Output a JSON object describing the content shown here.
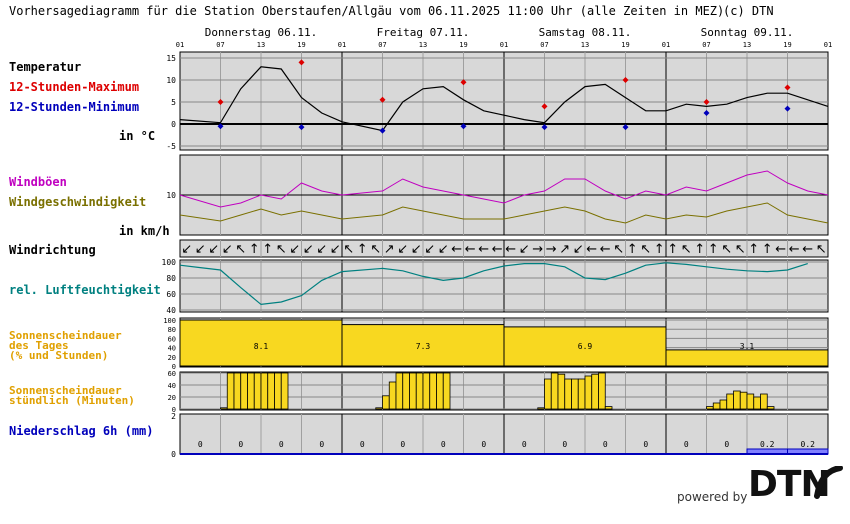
{
  "header": {
    "title": "Vorhersagediagramm für die Station Oberstaufen/Allgäu vom 06.11.2025 11:00 Uhr (alle Zeiten in MEZ)",
    "copyright": "(c) DTN"
  },
  "days": [
    "Donnerstag 06.11.",
    "Freitag 07.11.",
    "Samstag 08.11.",
    "Sonntag 09.11."
  ],
  "hour_ticks": [
    "01",
    "07",
    "13",
    "19",
    "01",
    "07",
    "13",
    "19",
    "01",
    "07",
    "13",
    "19",
    "01",
    "07",
    "13",
    "19",
    "01"
  ],
  "labels": {
    "temperature": "Temperatur",
    "max": "12-Stunden-Maximum",
    "min": "12-Stunden-Minimum",
    "temp_unit": "in °C",
    "gusts": "Windböen",
    "wind_speed": "Windgeschwindigkeit",
    "wind_unit": "in km/h",
    "wind_dir": "Windrichtung",
    "humidity": "rel. Luftfeuchtigkeit",
    "sun_daily_1": "Sonnenscheindauer",
    "sun_daily_2": "des Tages",
    "sun_daily_3": "(% und Stunden)",
    "sun_hourly_1": "Sonnenscheindauer",
    "sun_hourly_2": "stündlich (Minuten)",
    "precip": "Niederschlag 6h (mm)"
  },
  "footer": {
    "powered_by": "powered by",
    "brand": "DTN"
  },
  "colors": {
    "panel_bg": "#d8d8d8",
    "temp_max": "#dd0000",
    "temp_min": "#0000bb",
    "gust": "#c000c0",
    "wind": "#7a7000",
    "humidity": "#008080",
    "sun": "#f8d820",
    "sun_label": "#e0a000",
    "precip": "#0000bb",
    "precip_bar": "#8080ff"
  },
  "chart_data": [
    {
      "type": "line",
      "name": "temperature",
      "x_hours": [
        0,
        6,
        9,
        12,
        15,
        18,
        21,
        24,
        30,
        33,
        36,
        39,
        42,
        45,
        48,
        51,
        54,
        57,
        60,
        63,
        66,
        69,
        72,
        75,
        78,
        81,
        84,
        87,
        90,
        93,
        96
      ],
      "y": [
        1,
        0.3,
        8,
        13,
        12.5,
        6,
        2.5,
        0.5,
        -1.5,
        5,
        8,
        8.5,
        5.5,
        3,
        2,
        1,
        0.3,
        5,
        8.5,
        9,
        6,
        3,
        3,
        4.5,
        4,
        4.5,
        6,
        7,
        7,
        5.5,
        4
      ],
      "ylim": [
        -5,
        15
      ],
      "yticks": [
        -5,
        0,
        5,
        10,
        15
      ],
      "max_points": {
        "x_hours": [
          6,
          18,
          30,
          42,
          54,
          66,
          78,
          90
        ],
        "y": [
          5,
          14,
          5.5,
          9.5,
          4,
          10,
          5,
          8.3
        ]
      },
      "min_points": {
        "x_hours": [
          6,
          18,
          30,
          42,
          54,
          66,
          78,
          90
        ],
        "y": [
          -0.5,
          -0.7,
          -1.5,
          -0.5,
          -0.7,
          -0.7,
          2.5,
          3.5
        ]
      }
    },
    {
      "type": "line",
      "name": "wind",
      "ylim": [
        0,
        20
      ],
      "yticks": [
        10
      ],
      "x_hours": [
        0,
        6,
        9,
        12,
        15,
        18,
        21,
        24,
        30,
        33,
        36,
        39,
        42,
        45,
        48,
        51,
        54,
        57,
        60,
        63,
        66,
        69,
        72,
        75,
        78,
        81,
        84,
        87,
        90,
        93,
        96
      ],
      "gusts": [
        10,
        7,
        8,
        10,
        9,
        13,
        11,
        10,
        11,
        14,
        12,
        11,
        10,
        9,
        8,
        10,
        11,
        14,
        14,
        11,
        9,
        11,
        10,
        12,
        11,
        13,
        15,
        16,
        13,
        11,
        10
      ],
      "speed": [
        5,
        3.5,
        5,
        6.5,
        5,
        6,
        5,
        4,
        5,
        7,
        6,
        5,
        4,
        4,
        4,
        5,
        6,
        7,
        6,
        4,
        3,
        5,
        4,
        5,
        4.5,
        6,
        7,
        8,
        5,
        4,
        3
      ]
    },
    {
      "type": "wind_direction",
      "arrows": [
        "↙",
        "↙",
        "↙",
        "↙",
        "↖",
        "↑",
        "↑",
        "↖",
        "↙",
        "↙",
        "↙",
        "↙",
        "↖",
        "↑",
        "↖",
        "↗",
        "↙",
        "↙",
        "↙",
        "↙",
        "←",
        "←",
        "←",
        "←",
        "←",
        "↙",
        "→",
        "→",
        "↗",
        "↙",
        "←",
        "←",
        "↖",
        "↑",
        "↖",
        "↑",
        "↑",
        "↖",
        "↑",
        "↑",
        "↖",
        "↖",
        "↑",
        "↑",
        "←",
        "←",
        "←",
        "↖"
      ]
    },
    {
      "type": "line",
      "name": "humidity",
      "ylim": [
        40,
        100
      ],
      "yticks": [
        40,
        60,
        80,
        100
      ],
      "x_hours": [
        0,
        3,
        6,
        9,
        12,
        15,
        18,
        21,
        24,
        30,
        33,
        36,
        39,
        42,
        45,
        48,
        51,
        54,
        57,
        60,
        63,
        66,
        69,
        72,
        75,
        78,
        81,
        84,
        87,
        90,
        93
      ],
      "y": [
        96,
        93,
        90,
        68,
        47,
        50,
        58,
        77,
        88,
        92,
        89,
        82,
        77,
        80,
        89,
        95,
        98,
        98,
        94,
        80,
        78,
        86,
        96,
        99,
        97,
        94,
        91,
        89,
        88,
        90,
        98
      ]
    },
    {
      "type": "bar",
      "name": "sunshine_daily",
      "categories": [
        "06.11.",
        "07.11.",
        "08.11.",
        "09.11."
      ],
      "values_pct": [
        100,
        90,
        85,
        35
      ],
      "hours": [
        "8.1",
        "7.3",
        "6.9",
        "3.1"
      ],
      "ylim": [
        0,
        100
      ],
      "yticks": [
        0,
        20,
        40,
        60,
        80,
        100
      ]
    },
    {
      "type": "bar",
      "name": "sunshine_hourly",
      "ylim": [
        0,
        60
      ],
      "yticks": [
        0,
        20,
        40,
        60
      ],
      "start_hours": [
        6,
        7,
        8,
        9,
        10,
        11,
        12,
        13,
        14,
        15,
        29,
        30,
        31,
        32,
        33,
        34,
        35,
        36,
        37,
        38,
        39,
        53,
        54,
        55,
        56,
        57,
        58,
        59,
        60,
        61,
        62,
        63,
        78,
        79,
        80,
        81,
        82,
        83,
        84,
        85,
        86,
        87
      ],
      "minutes": [
        2,
        60,
        60,
        60,
        60,
        60,
        60,
        60,
        60,
        60,
        2,
        22,
        45,
        60,
        60,
        60,
        60,
        60,
        60,
        60,
        60,
        2,
        50,
        60,
        58,
        50,
        50,
        50,
        55,
        58,
        60,
        4,
        4,
        10,
        15,
        25,
        30,
        28,
        25,
        20,
        25,
        4
      ]
    },
    {
      "type": "bar",
      "name": "precipitation_6h",
      "categories": [
        "01-07",
        "07-13",
        "13-19",
        "19-01",
        "01-07",
        "07-13",
        "13-19",
        "19-01",
        "01-07",
        "07-13",
        "13-19",
        "19-01",
        "01-07",
        "07-13",
        "13-19",
        "19-01"
      ],
      "values": [
        "0",
        "0",
        "0",
        "0",
        "0",
        "0",
        "0",
        "0",
        "0",
        "0",
        "0",
        "0",
        "0",
        "0",
        "0.2",
        "0.2"
      ],
      "yticks": [
        0,
        2
      ]
    }
  ]
}
